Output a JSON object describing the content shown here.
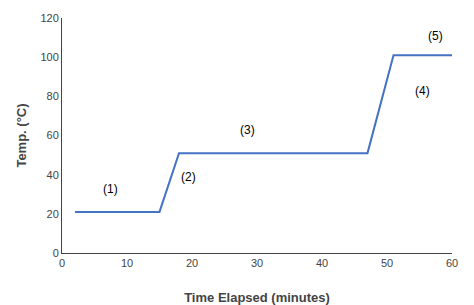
{
  "chart_data": {
    "type": "line",
    "x": [
      2,
      15,
      18,
      47,
      51,
      60
    ],
    "values": [
      21,
      21,
      51,
      51,
      101,
      101
    ],
    "color": "#4472C4",
    "xlabel": "Time Elapsed (minutes)",
    "ylabel": "Temp. (°C)",
    "xlim": [
      0,
      60
    ],
    "ylim": [
      0,
      120
    ],
    "xticks": [
      0,
      10,
      20,
      30,
      40,
      50,
      60
    ],
    "yticks": [
      0,
      20,
      40,
      60,
      80,
      100,
      120
    ],
    "grid": false,
    "annotations": [
      {
        "label": "(1)",
        "x": 6,
        "y": 28
      },
      {
        "label": "(2)",
        "x": 18,
        "y": 34
      },
      {
        "label": "(3)",
        "x": 27,
        "y": 58
      },
      {
        "label": "(4)",
        "x": 54,
        "y": 78
      },
      {
        "label": "(5)",
        "x": 56,
        "y": 106
      }
    ]
  }
}
